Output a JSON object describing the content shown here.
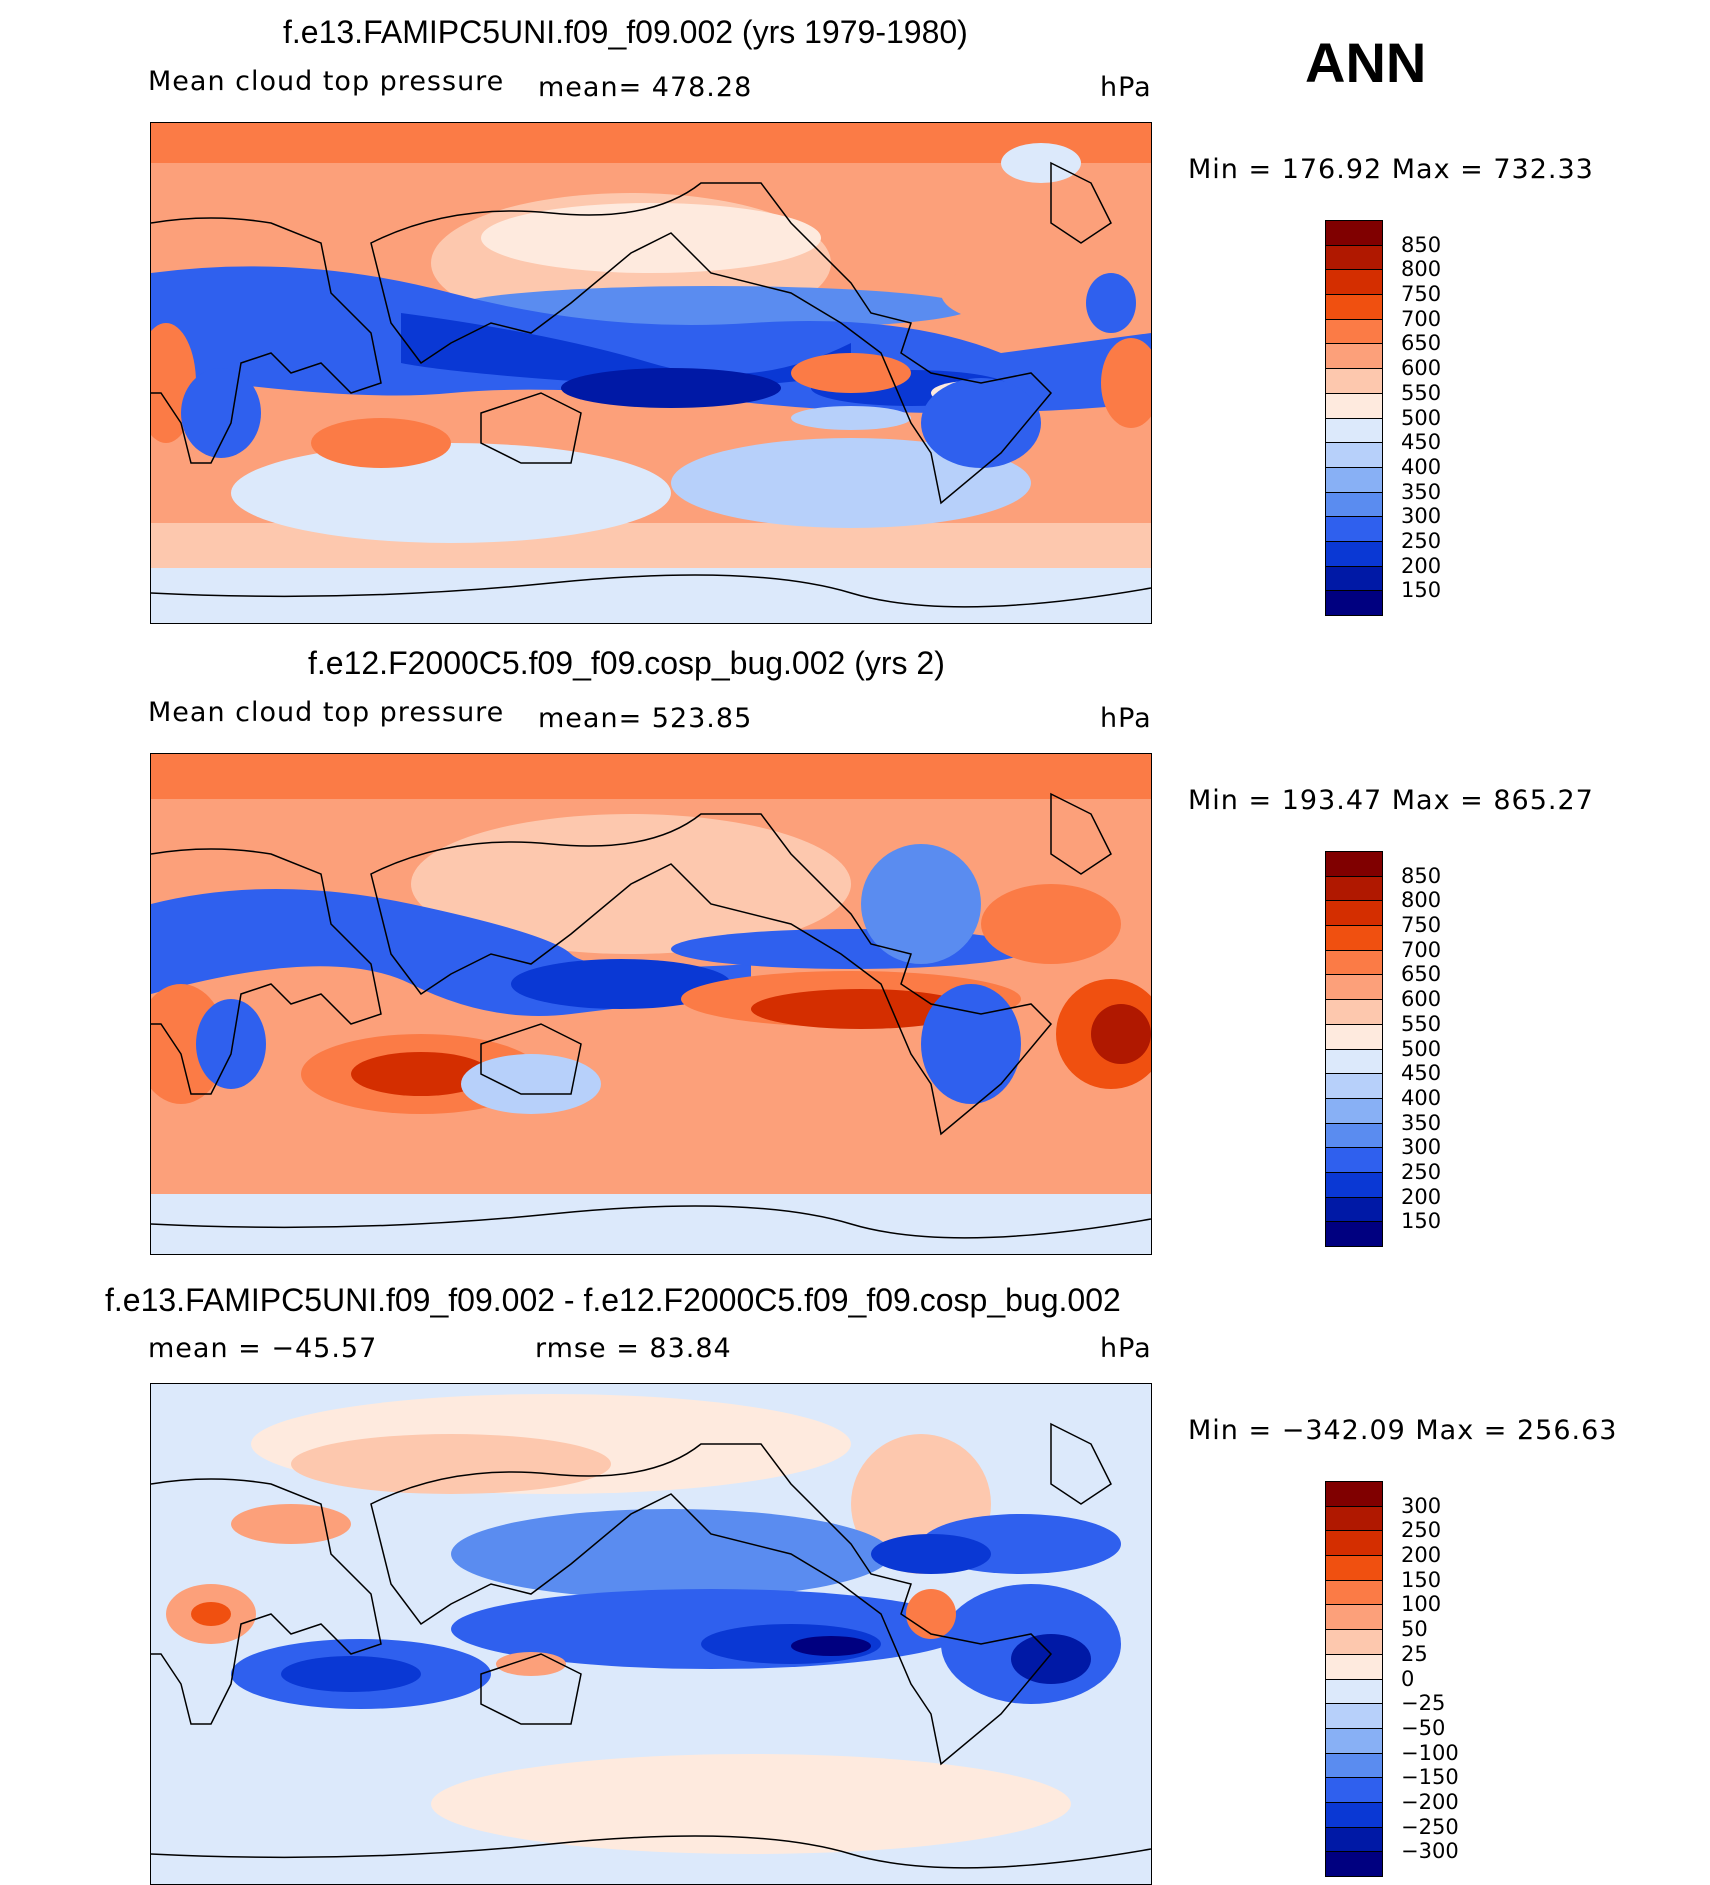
{
  "season": "ANN",
  "panels": [
    {
      "id": "p1",
      "title": "f.e13.FAMIPC5UNI.f09_f09.002 (yrs 1979-1980)",
      "variable": "Mean cloud top pressure",
      "mean_label": "mean=  478.28",
      "units": "hPa",
      "minmax": "Min  =  176.92  Max  =  732.33",
      "colorbar": {
        "labels": [
          "850",
          "800",
          "750",
          "700",
          "650",
          "600",
          "550",
          "500",
          "450",
          "400",
          "350",
          "300",
          "250",
          "200",
          "150"
        ],
        "colors": [
          "#800000",
          "#b01800",
          "#d42e00",
          "#f05010",
          "#fb7b46",
          "#fca07a",
          "#fdc8ae",
          "#feeade",
          "#dce9fb",
          "#b7d0fa",
          "#88b0f5",
          "#5a8cf0",
          "#2f60ee",
          "#0a38d4",
          "#0019a6",
          "#000080"
        ]
      }
    },
    {
      "id": "p2",
      "title": "f.e12.F2000C5.f09_f09.cosp_bug.002 (yrs 2)",
      "variable": "Mean cloud top pressure",
      "mean_label": "mean=  523.85",
      "units": "hPa",
      "minmax": "Min  =  193.47  Max  =  865.27",
      "colorbar": {
        "labels": [
          "850",
          "800",
          "750",
          "700",
          "650",
          "600",
          "550",
          "500",
          "450",
          "400",
          "350",
          "300",
          "250",
          "200",
          "150"
        ],
        "colors": [
          "#800000",
          "#b01800",
          "#d42e00",
          "#f05010",
          "#fb7b46",
          "#fca07a",
          "#fdc8ae",
          "#feeade",
          "#dce9fb",
          "#b7d0fa",
          "#88b0f5",
          "#5a8cf0",
          "#2f60ee",
          "#0a38d4",
          "#0019a6",
          "#000080"
        ]
      }
    },
    {
      "id": "p3",
      "title": "f.e13.FAMIPC5UNI.f09_f09.002 - f.e12.F2000C5.f09_f09.cosp_bug.002",
      "mean_label": "mean  =  −45.57",
      "rmse_label": "rmse  =    83.84",
      "units": "hPa",
      "minmax": "Min  =  −342.09  Max  =  256.63",
      "colorbar": {
        "labels": [
          "300",
          "250",
          "200",
          "150",
          "100",
          "50",
          "25",
          "0",
          "−25",
          "−50",
          "−100",
          "−150",
          "−200",
          "−250",
          "−300"
        ],
        "colors": [
          "#800000",
          "#b01800",
          "#d42e00",
          "#f05010",
          "#fb7b46",
          "#fca07a",
          "#fdc8ae",
          "#feeade",
          "#dce9fb",
          "#b7d0fa",
          "#88b0f5",
          "#5a8cf0",
          "#2f60ee",
          "#0a38d4",
          "#0019a6",
          "#000080"
        ]
      }
    }
  ]
}
